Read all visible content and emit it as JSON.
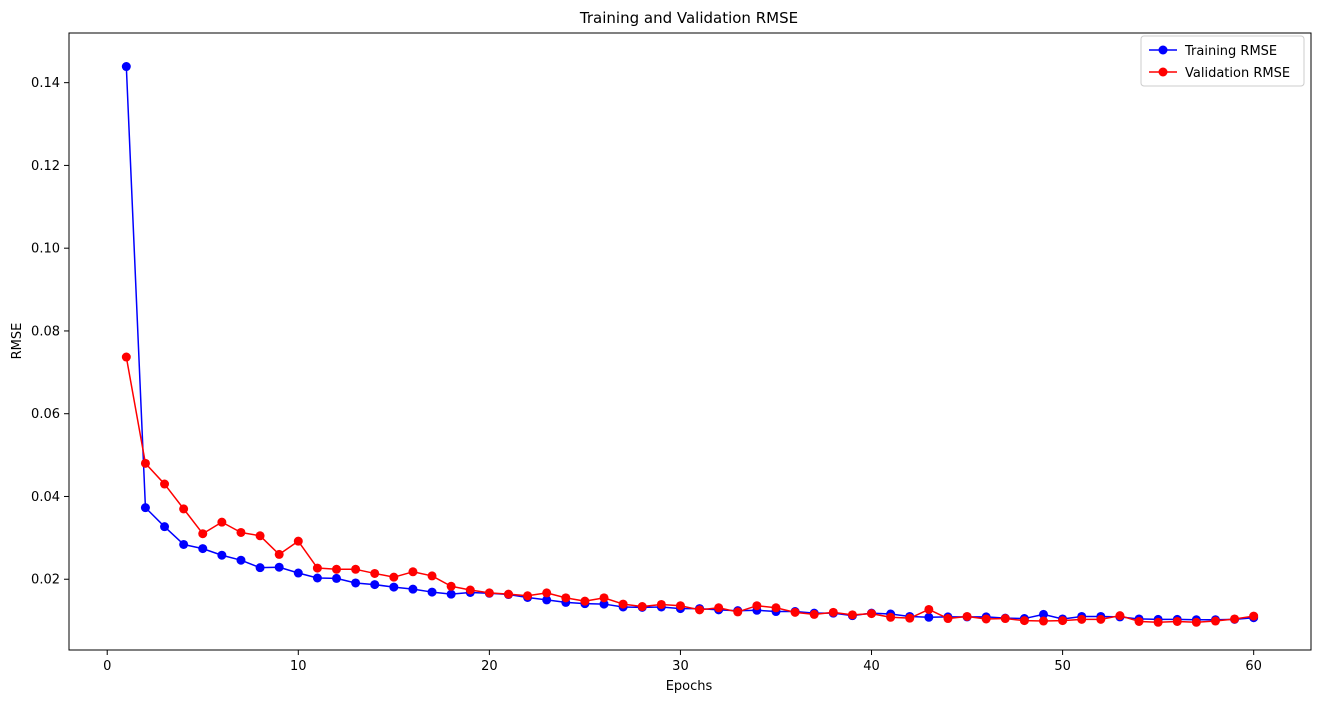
{
  "chart_data": {
    "type": "line",
    "title": "Training and Validation RMSE",
    "xlabel": "Epochs",
    "ylabel": "RMSE",
    "xlim": [
      -2,
      63
    ],
    "ylim": [
      0.0029,
      0.152
    ],
    "xticks": [
      0,
      10,
      20,
      30,
      40,
      50,
      60
    ],
    "yticks": [
      0.02,
      0.04,
      0.06,
      0.08,
      0.1,
      0.12,
      0.14
    ],
    "ytick_labels": [
      "0.02",
      "0.04",
      "0.06",
      "0.08",
      "0.10",
      "0.12",
      "0.14"
    ],
    "grid": false,
    "legend_position": "top-right",
    "x": [
      1,
      2,
      3,
      4,
      5,
      6,
      7,
      8,
      9,
      10,
      11,
      12,
      13,
      14,
      15,
      16,
      17,
      18,
      19,
      20,
      21,
      22,
      23,
      24,
      25,
      26,
      27,
      28,
      29,
      30,
      31,
      32,
      33,
      34,
      35,
      36,
      37,
      38,
      39,
      40,
      41,
      42,
      43,
      44,
      45,
      46,
      47,
      48,
      49,
      50,
      51,
      52,
      53,
      54,
      55,
      56,
      57,
      58,
      59,
      60
    ],
    "series": [
      {
        "name": "Training RMSE",
        "color": "#0000ff",
        "values": [
          0.1439,
          0.0373,
          0.0327,
          0.0284,
          0.0274,
          0.0258,
          0.0246,
          0.0228,
          0.0229,
          0.0215,
          0.0203,
          0.0202,
          0.0191,
          0.0187,
          0.0181,
          0.0176,
          0.0169,
          0.0164,
          0.0168,
          0.0166,
          0.0163,
          0.0156,
          0.015,
          0.0144,
          0.0141,
          0.014,
          0.0133,
          0.0132,
          0.0133,
          0.0129,
          0.0129,
          0.0126,
          0.0124,
          0.0125,
          0.0122,
          0.0122,
          0.0118,
          0.0118,
          0.0112,
          0.0118,
          0.0116,
          0.011,
          0.0108,
          0.0109,
          0.0109,
          0.0109,
          0.0106,
          0.0105,
          0.0115,
          0.0104,
          0.011,
          0.011,
          0.0109,
          0.0104,
          0.0103,
          0.0103,
          0.0102,
          0.0102,
          0.0103,
          0.0107
        ]
      },
      {
        "name": "Validation RMSE",
        "color": "#ff0000",
        "values": [
          0.0737,
          0.048,
          0.043,
          0.037,
          0.031,
          0.0338,
          0.0313,
          0.0305,
          0.026,
          0.0292,
          0.0227,
          0.0224,
          0.0224,
          0.0214,
          0.0205,
          0.0218,
          0.0208,
          0.0183,
          0.0174,
          0.0167,
          0.0164,
          0.016,
          0.0167,
          0.0155,
          0.0147,
          0.0155,
          0.014,
          0.0134,
          0.0139,
          0.0136,
          0.0126,
          0.0131,
          0.0121,
          0.0136,
          0.0131,
          0.012,
          0.0115,
          0.012,
          0.0114,
          0.0117,
          0.0108,
          0.0106,
          0.0127,
          0.0105,
          0.011,
          0.0104,
          0.0105,
          0.01,
          0.0099,
          0.01,
          0.0103,
          0.0103,
          0.0112,
          0.0098,
          0.0096,
          0.0098,
          0.0096,
          0.0099,
          0.0104,
          0.0111
        ]
      }
    ]
  }
}
